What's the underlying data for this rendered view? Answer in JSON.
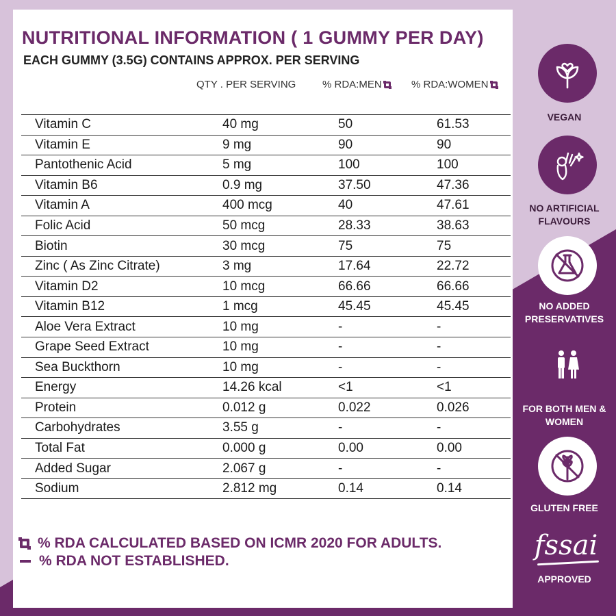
{
  "title": "NUTRITIONAL INFORMATION ( 1 GUMMY PER DAY)",
  "subtitle": "EACH GUMMY (3.5G) CONTAINS APPROX. PER SERVING",
  "columns": {
    "qty": "QTY . PER SERVING",
    "men": "% RDA:MEN",
    "women": "% RDA:WOMEN"
  },
  "rows": [
    {
      "name": "Vitamin C",
      "qty": "40 mg",
      "men": "50",
      "women": "61.53"
    },
    {
      "name": "Vitamin E",
      "qty": "9 mg",
      "men": "90",
      "women": "90"
    },
    {
      "name": "Pantothenic Acid",
      "qty": "5 mg",
      "men": "100",
      "women": "100"
    },
    {
      "name": "Vitamin B6",
      "qty": "0.9 mg",
      "men": "37.50",
      "women": "47.36"
    },
    {
      "name": "Vitamin A",
      "qty": "400 mcg",
      "men": "40",
      "women": "47.61"
    },
    {
      "name": "Folic Acid",
      "qty": "50 mcg",
      "men": "28.33",
      "women": "38.63"
    },
    {
      "name": "Biotin",
      "qty": "30 mcg",
      "men": "75",
      "women": "75"
    },
    {
      "name": "Zinc ( As Zinc Citrate)",
      "qty": "3 mg",
      "men": "17.64",
      "women": "22.72"
    },
    {
      "name": "Vitamin D2",
      "qty": "10 mcg",
      "men": "66.66",
      "women": "66.66"
    },
    {
      "name": "Vitamin B12",
      "qty": "1 mcg",
      "men": "45.45",
      "women": "45.45"
    },
    {
      "name": "Aloe Vera Extract",
      "qty": "10 mg",
      "men": "-",
      "women": "-"
    },
    {
      "name": "Grape Seed Extract",
      "qty": "10 mg",
      "men": "-",
      "women": "-"
    },
    {
      "name": "Sea Buckthorn",
      "qty": "10 mg",
      "men": "-",
      "women": "-"
    },
    {
      "name": "Energy",
      "qty": "14.26 kcal",
      "men": "<1",
      "women": "<1"
    },
    {
      "name": "Protein",
      "qty": "0.012 g",
      "men": "0.022",
      "women": "0.026"
    },
    {
      "name": "Carbohydrates",
      "qty": "3.55 g",
      "men": "-",
      "women": "-"
    },
    {
      "name": "Total Fat",
      "qty": "0.000 g",
      "men": "0.00",
      "women": "0.00"
    },
    {
      "name": "Added Sugar",
      "qty": "2.067 g",
      "men": "-",
      "women": "-"
    },
    {
      "name": "Sodium",
      "qty": "2.812 mg",
      "men": "0.14",
      "women": "0.14"
    }
  ],
  "notes": {
    "rda_basis": "% RDA CALCULATED BASED ON ICMR 2020 FOR ADULTS.",
    "not_established": "% RDA NOT ESTABLISHED."
  },
  "badges": [
    {
      "label": "VEGAN",
      "icon": "leaf-heart-icon"
    },
    {
      "label": "NO ARTIFICIAL FLAVOURS",
      "icon": "ok-hand-sparkle-icon"
    },
    {
      "label": "NO ADDED PRESERVATIVES",
      "icon": "no-flask-icon"
    },
    {
      "label": "FOR BOTH MEN & WOMEN",
      "icon": "man-woman-icon"
    },
    {
      "label": "GLUTEN FREE",
      "icon": "no-wheat-icon"
    }
  ],
  "certification": {
    "logo_text": "fssai",
    "label": "APPROVED"
  },
  "colors": {
    "accent": "#6b2a69",
    "background_light": "#d7c2da",
    "panel": "#ffffff"
  }
}
